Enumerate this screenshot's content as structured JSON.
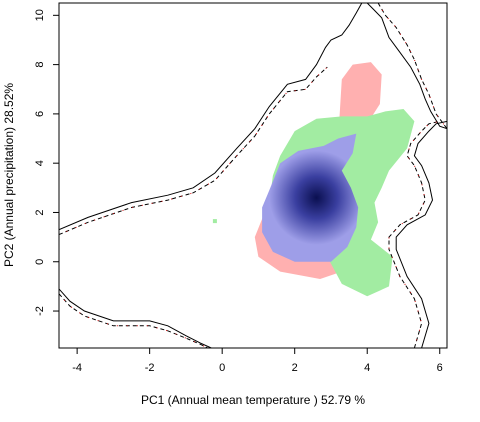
{
  "chart_data": {
    "type": "area",
    "title": "",
    "xlabel": "PC1 (Annual mean temperature ) 52.79 %",
    "ylabel": "PC2 (Annual precipitation) 28.52%",
    "xlim": [
      -4.5,
      6.2
    ],
    "ylim": [
      -3.5,
      10.5
    ],
    "xticks": [
      "-4",
      "-2",
      "0",
      "2",
      "4",
      "6"
    ],
    "yticks": [
      "-2",
      "0",
      "2",
      "4",
      "6",
      "8",
      "10"
    ],
    "grid": false,
    "legend": "none",
    "colors": {
      "red_region": "#ffb0b0",
      "green_region": "#a2eca2",
      "overlap_light": "#9e9ee8",
      "overlap_dark": "#0a0f50",
      "envelope_solid": "#000000",
      "envelope_dashed": "#000000",
      "envelope_red": "#cc0000"
    },
    "series": [
      {
        "kind": "red-density",
        "polygon": [
          [
            3.2,
            5.0
          ],
          [
            3.25,
            6.2
          ],
          [
            3.3,
            7.4
          ],
          [
            3.6,
            8.0
          ],
          [
            4.1,
            8.1
          ],
          [
            4.4,
            7.6
          ],
          [
            4.35,
            6.4
          ],
          [
            4.0,
            5.6
          ],
          [
            3.6,
            4.9
          ],
          [
            3.3,
            4.6
          ],
          [
            2.5,
            4.3
          ],
          [
            1.6,
            3.3
          ],
          [
            1.2,
            2.1
          ],
          [
            0.9,
            1.0
          ],
          [
            1.0,
            0.2
          ],
          [
            1.6,
            -0.4
          ],
          [
            2.7,
            -0.7
          ],
          [
            3.5,
            -0.3
          ],
          [
            3.3,
            0.9
          ],
          [
            2.8,
            2.2
          ],
          [
            3.0,
            3.4
          ],
          [
            3.2,
            4.2
          ]
        ]
      },
      {
        "kind": "green-density",
        "polygon": [
          [
            1.4,
            3.5
          ],
          [
            1.6,
            4.3
          ],
          [
            2.0,
            5.3
          ],
          [
            2.6,
            5.8
          ],
          [
            3.3,
            5.9
          ],
          [
            4.0,
            5.9
          ],
          [
            4.5,
            6.1
          ],
          [
            5.0,
            6.2
          ],
          [
            5.3,
            5.7
          ],
          [
            5.1,
            4.6
          ],
          [
            4.6,
            3.7
          ],
          [
            4.4,
            3.0
          ],
          [
            4.2,
            2.4
          ],
          [
            4.3,
            1.6
          ],
          [
            4.1,
            0.9
          ],
          [
            4.7,
            0.2
          ],
          [
            4.6,
            -1.0
          ],
          [
            4.0,
            -1.4
          ],
          [
            3.3,
            -0.9
          ],
          [
            2.9,
            0.2
          ],
          [
            2.4,
            0.7
          ],
          [
            1.8,
            1.3
          ],
          [
            1.3,
            2.4
          ]
        ]
      },
      {
        "kind": "overlap",
        "polygon": [
          [
            1.3,
            2.9
          ],
          [
            1.6,
            4.0
          ],
          [
            2.1,
            4.5
          ],
          [
            2.8,
            4.7
          ],
          [
            3.2,
            5.0
          ],
          [
            3.7,
            5.2
          ],
          [
            3.6,
            4.4
          ],
          [
            3.3,
            3.7
          ],
          [
            3.55,
            3.0
          ],
          [
            3.75,
            2.2
          ],
          [
            3.7,
            1.4
          ],
          [
            3.45,
            0.6
          ],
          [
            3.0,
            0.0
          ],
          [
            2.0,
            0.0
          ],
          [
            1.4,
            0.4
          ],
          [
            1.1,
            1.2
          ],
          [
            1.1,
            2.2
          ]
        ],
        "center": [
          2.6,
          2.6
        ]
      },
      {
        "kind": "isolated-point",
        "x": -0.2,
        "y": 1.65
      },
      {
        "kind": "envelope-solid",
        "points": [
          [
            -4.5,
            1.3
          ],
          [
            -3.7,
            1.8
          ],
          [
            -2.5,
            2.4
          ],
          [
            -1.5,
            2.7
          ],
          [
            -0.8,
            3.0
          ],
          [
            -0.2,
            3.6
          ],
          [
            0.4,
            4.6
          ],
          [
            0.9,
            5.4
          ],
          [
            1.3,
            6.3
          ],
          [
            1.8,
            7.2
          ],
          [
            2.3,
            7.4
          ],
          [
            2.6,
            8.0
          ],
          [
            2.85,
            8.7
          ],
          [
            3.0,
            9.0
          ],
          [
            3.3,
            9.2
          ],
          [
            3.5,
            9.6
          ],
          [
            3.7,
            10.1
          ],
          [
            3.85,
            10.5
          ]
        ],
        "points2": [
          [
            4.0,
            10.5
          ],
          [
            4.2,
            10.2
          ],
          [
            4.4,
            9.9
          ],
          [
            4.6,
            9.1
          ],
          [
            4.9,
            8.5
          ],
          [
            5.2,
            7.9
          ],
          [
            5.45,
            7.2
          ],
          [
            5.6,
            6.6
          ],
          [
            5.75,
            6.1
          ],
          [
            6.0,
            5.5
          ],
          [
            6.2,
            5.4
          ]
        ],
        "points3": [
          [
            -4.5,
            -1.1
          ],
          [
            -4.2,
            -1.6
          ],
          [
            -3.8,
            -2.0
          ],
          [
            -3.0,
            -2.4
          ],
          [
            -2.0,
            -2.4
          ],
          [
            -1.5,
            -2.6
          ],
          [
            -1.0,
            -3.0
          ],
          [
            -0.6,
            -3.3
          ],
          [
            -0.3,
            -3.5
          ]
        ],
        "points4": [
          [
            5.5,
            -3.5
          ],
          [
            5.7,
            -2.5
          ],
          [
            5.5,
            -1.5
          ],
          [
            5.1,
            -0.6
          ],
          [
            4.8,
            0.5
          ],
          [
            4.8,
            1.0
          ],
          [
            5.1,
            1.5
          ],
          [
            5.6,
            1.9
          ],
          [
            5.8,
            2.5
          ],
          [
            5.7,
            3.2
          ],
          [
            5.5,
            3.9
          ],
          [
            5.3,
            4.3
          ],
          [
            5.4,
            4.8
          ],
          [
            5.7,
            5.3
          ],
          [
            5.9,
            5.6
          ],
          [
            6.2,
            5.7
          ]
        ]
      },
      {
        "kind": "envelope-dashed",
        "points": [
          [
            -4.5,
            1.1
          ],
          [
            -3.7,
            1.6
          ],
          [
            -2.5,
            2.2
          ],
          [
            -1.5,
            2.5
          ],
          [
            -0.8,
            2.8
          ],
          [
            -0.2,
            3.3
          ],
          [
            0.4,
            4.3
          ],
          [
            0.9,
            5.1
          ],
          [
            1.3,
            6.0
          ],
          [
            1.8,
            6.9
          ],
          [
            2.3,
            7.0
          ],
          [
            2.6,
            7.5
          ],
          [
            2.9,
            7.9
          ]
        ],
        "points2": [
          [
            4.3,
            10.5
          ],
          [
            4.5,
            10.0
          ],
          [
            4.8,
            9.5
          ],
          [
            5.1,
            8.8
          ],
          [
            5.3,
            8.2
          ],
          [
            5.5,
            7.4
          ],
          [
            5.7,
            6.8
          ],
          [
            5.9,
            6.0
          ],
          [
            6.2,
            5.4
          ]
        ],
        "points3": [
          [
            -4.5,
            -1.3
          ],
          [
            -4.2,
            -1.8
          ],
          [
            -3.8,
            -2.2
          ],
          [
            -3.0,
            -2.6
          ],
          [
            -2.0,
            -2.6
          ],
          [
            -1.5,
            -2.8
          ],
          [
            -1.0,
            -3.1
          ],
          [
            -0.6,
            -3.35
          ],
          [
            -0.4,
            -3.5
          ]
        ],
        "points4": [
          [
            5.3,
            -3.5
          ],
          [
            5.5,
            -2.5
          ],
          [
            5.3,
            -1.5
          ],
          [
            4.9,
            -0.6
          ],
          [
            4.6,
            0.5
          ],
          [
            4.6,
            1.0
          ],
          [
            4.9,
            1.5
          ],
          [
            5.4,
            1.9
          ],
          [
            5.6,
            2.5
          ],
          [
            5.5,
            3.2
          ],
          [
            5.3,
            3.9
          ],
          [
            5.1,
            4.3
          ],
          [
            5.2,
            4.8
          ],
          [
            5.5,
            5.3
          ],
          [
            5.7,
            5.6
          ],
          [
            6.0,
            5.7
          ]
        ]
      }
    ]
  }
}
